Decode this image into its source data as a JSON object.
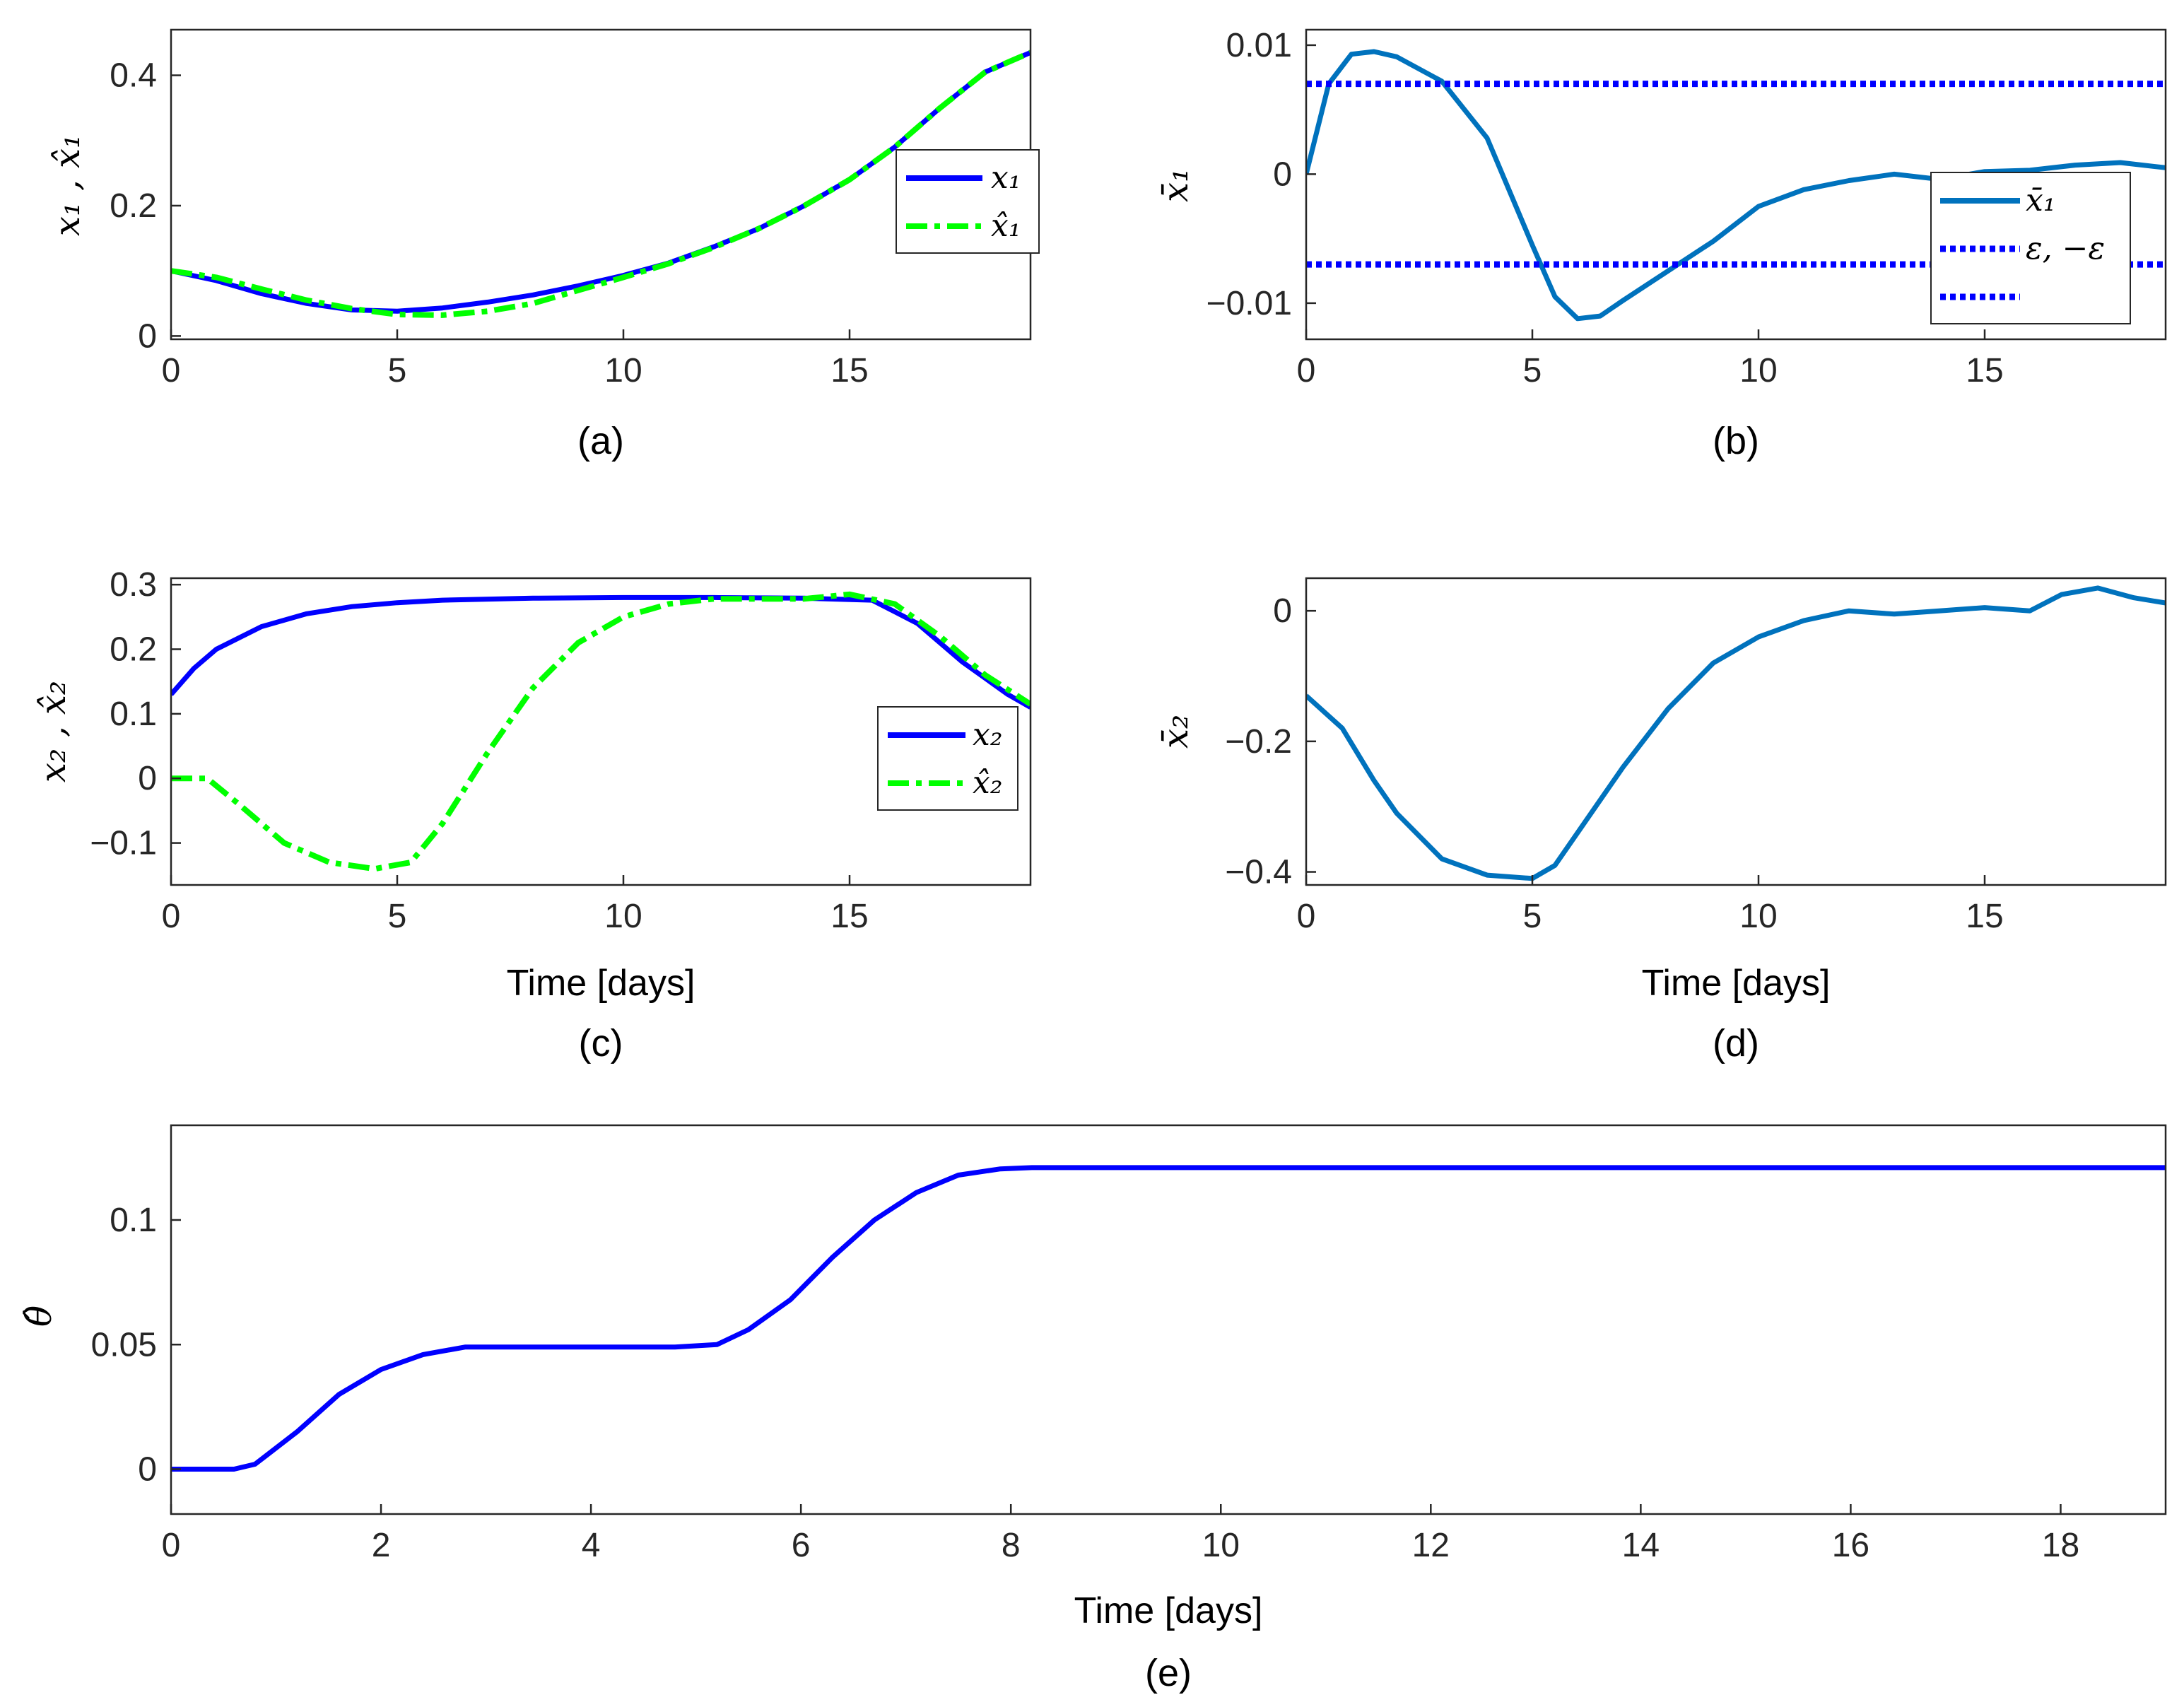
{
  "colors": {
    "blue": "#0000ff",
    "green": "#00ff00",
    "matlab_blue": "#0072bd",
    "axis": "#262626"
  },
  "chart_data": [
    {
      "id": "a",
      "type": "line",
      "caption": "(a)",
      "ylabel": "x₁ , x̂₁",
      "xlabel": "",
      "xlim": [
        0,
        19
      ],
      "ylim": [
        -0.005,
        0.47
      ],
      "xticks": [
        0,
        5,
        10,
        15
      ],
      "xtick_labels": [
        "0",
        "5",
        "10",
        "15"
      ],
      "yticks": [
        0,
        0.2,
        0.4
      ],
      "ytick_labels": [
        "0",
        "0.2",
        "0.4"
      ],
      "legend": "top-right",
      "series": [
        {
          "name": "x₁",
          "style": "solid",
          "color": "blue",
          "x": [
            0,
            1,
            2,
            3,
            4,
            5,
            6,
            7,
            8,
            9,
            10,
            11,
            12,
            13,
            14,
            15,
            16,
            17,
            18,
            19
          ],
          "y": [
            0.1,
            0.085,
            0.065,
            0.05,
            0.04,
            0.038,
            0.043,
            0.052,
            0.063,
            0.077,
            0.093,
            0.112,
            0.137,
            0.165,
            0.2,
            0.24,
            0.29,
            0.35,
            0.405,
            0.435
          ]
        },
        {
          "name": "x̂₁",
          "style": "dashdot",
          "color": "green",
          "x": [
            0,
            1,
            2,
            3,
            4,
            5,
            6,
            7,
            8,
            9,
            10,
            11,
            12,
            13,
            14,
            15,
            16,
            17,
            18,
            19
          ],
          "y": [
            0.1,
            0.09,
            0.072,
            0.055,
            0.042,
            0.033,
            0.032,
            0.038,
            0.05,
            0.07,
            0.09,
            0.111,
            0.136,
            0.165,
            0.2,
            0.24,
            0.29,
            0.35,
            0.405,
            0.435
          ]
        }
      ]
    },
    {
      "id": "b",
      "type": "line",
      "caption": "(b)",
      "ylabel": "x̄₁",
      "xlabel": "",
      "xlim": [
        0,
        19
      ],
      "ylim": [
        -0.0128,
        0.0112
      ],
      "xticks": [
        0,
        5,
        10,
        15
      ],
      "xtick_labels": [
        "0",
        "5",
        "10",
        "15"
      ],
      "yticks": [
        0.01,
        0,
        -0.01
      ],
      "ytick_labels": [
        "0.01",
        "0",
        "−0.01"
      ],
      "legend": "bottom-right",
      "series": [
        {
          "name": "x̄₁",
          "style": "solid",
          "color": "matlab_blue",
          "x": [
            0,
            0.5,
            1,
            1.5,
            2,
            3,
            4,
            5,
            5.5,
            6,
            6.5,
            7,
            8,
            9,
            10,
            11,
            12,
            13,
            14,
            15,
            16,
            17,
            18,
            19
          ],
          "y": [
            0,
            0.007,
            0.0093,
            0.0095,
            0.0091,
            0.0072,
            0.0028,
            -0.0055,
            -0.0095,
            -0.0112,
            -0.011,
            -0.0098,
            -0.0075,
            -0.0052,
            -0.0025,
            -0.0012,
            -0.0005,
            0.0,
            -0.0004,
            0.0002,
            0.0003,
            0.0007,
            0.0009,
            0.0005
          ]
        },
        {
          "name": "ε, −ε",
          "style": "dotted",
          "color": "blue",
          "x": [
            0,
            19
          ],
          "y": [
            0.007,
            0.007
          ]
        },
        {
          "name": "",
          "style": "dotted",
          "color": "blue",
          "x": [
            0,
            19
          ],
          "y": [
            -0.007,
            -0.007
          ]
        }
      ]
    },
    {
      "id": "c",
      "type": "line",
      "caption": "(c)",
      "ylabel": "x₂ , x̂₂",
      "xlabel": "Time [days]",
      "xlim": [
        0,
        19
      ],
      "ylim": [
        -0.165,
        0.31
      ],
      "xticks": [
        0,
        5,
        10,
        15
      ],
      "xtick_labels": [
        "0",
        "5",
        "10",
        "15"
      ],
      "yticks": [
        0.3,
        0.2,
        0.1,
        0,
        -0.1
      ],
      "ytick_labels": [
        "0.3",
        "0.2",
        "0.1",
        "0",
        "−0.1"
      ],
      "legend": "bottom-right",
      "series": [
        {
          "name": "x₂",
          "style": "solid",
          "color": "blue",
          "x": [
            0,
            0.5,
            1,
            2,
            3,
            4,
            5,
            6,
            8,
            10,
            12,
            14,
            15.5,
            16.5,
            17.5,
            18.5,
            19
          ],
          "y": [
            0.13,
            0.17,
            0.2,
            0.235,
            0.255,
            0.266,
            0.272,
            0.276,
            0.279,
            0.28,
            0.28,
            0.279,
            0.276,
            0.24,
            0.18,
            0.13,
            0.11
          ]
        },
        {
          "name": "x̂₂",
          "style": "dashdot",
          "color": "green",
          "x": [
            0,
            0.8,
            1.5,
            2.5,
            3.5,
            4.5,
            5.3,
            6,
            7,
            8,
            9,
            10,
            11,
            12,
            13,
            14,
            15,
            16,
            17,
            18,
            19
          ],
          "y": [
            0,
            0,
            -0.04,
            -0.1,
            -0.13,
            -0.14,
            -0.13,
            -0.07,
            0.04,
            0.14,
            0.21,
            0.25,
            0.27,
            0.278,
            0.278,
            0.278,
            0.285,
            0.27,
            0.22,
            0.16,
            0.115
          ]
        }
      ]
    },
    {
      "id": "d",
      "type": "line",
      "caption": "(d)",
      "ylabel": "x̄₂",
      "xlabel": "Time [days]",
      "xlim": [
        0,
        19
      ],
      "ylim": [
        -0.42,
        0.05
      ],
      "xticks": [
        0,
        5,
        10,
        15
      ],
      "xtick_labels": [
        "0",
        "5",
        "10",
        "15"
      ],
      "yticks": [
        0,
        -0.2,
        -0.4
      ],
      "ytick_labels": [
        "0",
        "−0.2",
        "−0.4"
      ],
      "legend": "",
      "series": [
        {
          "name": "x̄₂",
          "style": "solid",
          "color": "matlab_blue",
          "x": [
            0,
            0.8,
            1.5,
            2,
            3,
            4,
            5,
            5.5,
            6,
            7,
            8,
            9,
            10,
            11,
            12,
            13,
            14,
            15,
            16,
            16.7,
            17.5,
            18.3,
            19
          ],
          "y": [
            -0.13,
            -0.18,
            -0.26,
            -0.31,
            -0.38,
            -0.405,
            -0.41,
            -0.39,
            -0.34,
            -0.24,
            -0.15,
            -0.08,
            -0.04,
            -0.015,
            0.0,
            -0.005,
            0.0,
            0.005,
            0.0,
            0.025,
            0.035,
            0.02,
            0.012
          ]
        }
      ]
    },
    {
      "id": "e",
      "type": "line",
      "caption": "(e)",
      "ylabel": "θ̂",
      "xlabel": "Time [days]",
      "xlim": [
        0,
        19
      ],
      "ylim": [
        -0.018,
        0.138
      ],
      "xticks": [
        0,
        2,
        4,
        6,
        8,
        10,
        12,
        14,
        16,
        18
      ],
      "xtick_labels": [
        "0",
        "2",
        "4",
        "6",
        "8",
        "10",
        "12",
        "14",
        "16",
        "18"
      ],
      "yticks": [
        0,
        0.05,
        0.1
      ],
      "ytick_labels": [
        "0",
        "0.05",
        "0.1"
      ],
      "legend": "",
      "series": [
        {
          "name": "θ̂",
          "style": "solid",
          "color": "blue",
          "x": [
            0,
            0.6,
            0.8,
            1.2,
            1.6,
            2.0,
            2.4,
            2.8,
            3.2,
            4.0,
            4.8,
            5.2,
            5.5,
            5.9,
            6.3,
            6.7,
            7.1,
            7.5,
            7.9,
            8.2,
            8.6,
            19
          ],
          "y": [
            0,
            0,
            0.002,
            0.015,
            0.03,
            0.04,
            0.046,
            0.049,
            0.049,
            0.049,
            0.049,
            0.05,
            0.056,
            0.068,
            0.085,
            0.1,
            0.111,
            0.118,
            0.1205,
            0.121,
            0.121,
            0.121
          ]
        }
      ]
    }
  ]
}
